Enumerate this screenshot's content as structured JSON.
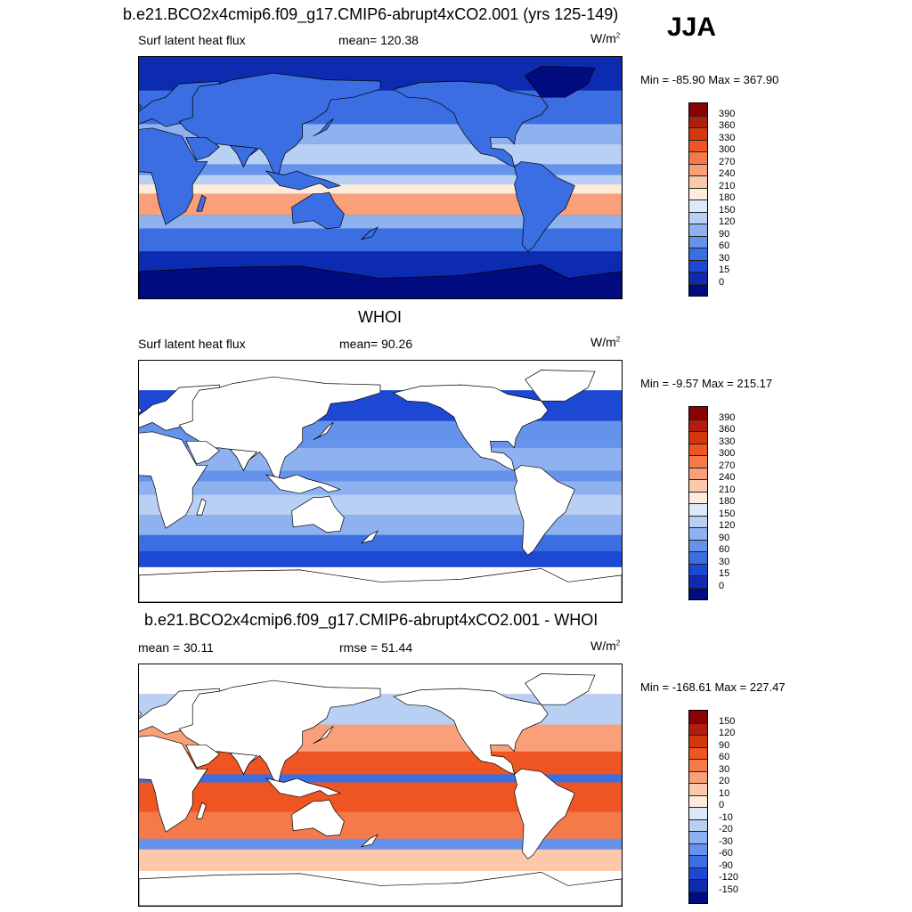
{
  "header": {
    "title": "b.e21.BCO2x4cmip6.f09_g17.CMIP6-abrupt4xCO2.001 (yrs 125-149)",
    "season": "JJA"
  },
  "panels": [
    {
      "title": "",
      "left_label": "Surf latent heat flux",
      "mid_label": "mean= 120.38",
      "unit": "W/m",
      "unit_sup": "2",
      "minmax": "Min = -85.90 Max = 367.90",
      "land_masked": false,
      "colorbar": {
        "labels": [
          "390",
          "360",
          "330",
          "300",
          "270",
          "240",
          "210",
          "180",
          "150",
          "120",
          "90",
          "60",
          "30",
          "15",
          "0"
        ],
        "colors": [
          "#8b0000",
          "#b21e0d",
          "#d4380f",
          "#ee5522",
          "#f57a4a",
          "#f9a07a",
          "#fcc8aa",
          "#fdebdc",
          "#dde9f8",
          "#b9d0f5",
          "#8eb2f0",
          "#6592ea",
          "#3b6ee2",
          "#1d48d3",
          "#0d2bb0",
          "#000c80"
        ]
      }
    },
    {
      "title": "WHOI",
      "left_label": "Surf latent heat flux",
      "mid_label": "mean=  90.26",
      "unit": "W/m",
      "unit_sup": "2",
      "minmax": "Min =  -9.57 Max = 215.17",
      "land_masked": true,
      "colorbar": {
        "labels": [
          "390",
          "360",
          "330",
          "300",
          "270",
          "240",
          "210",
          "180",
          "150",
          "120",
          "90",
          "60",
          "30",
          "15",
          "0"
        ],
        "colors": [
          "#8b0000",
          "#b21e0d",
          "#d4380f",
          "#ee5522",
          "#f57a4a",
          "#f9a07a",
          "#fcc8aa",
          "#fdebdc",
          "#dde9f8",
          "#b9d0f5",
          "#8eb2f0",
          "#6592ea",
          "#3b6ee2",
          "#1d48d3",
          "#0d2bb0",
          "#000c80"
        ]
      }
    },
    {
      "title": "b.e21.BCO2x4cmip6.f09_g17.CMIP6-abrupt4xCO2.001 - WHOI",
      "left_label": "mean =  30.11",
      "mid_label": "rmse =  51.44",
      "unit": "W/m",
      "unit_sup": "2",
      "minmax": "Min = -168.61 Max = 227.47",
      "land_masked": true,
      "colorbar": {
        "labels": [
          "150",
          "120",
          "90",
          "60",
          "30",
          "20",
          "10",
          "0",
          "-10",
          "-20",
          "-30",
          "-60",
          "-90",
          "-120",
          "-150"
        ],
        "colors": [
          "#8b0000",
          "#b21e0d",
          "#d4380f",
          "#ee5522",
          "#f57a4a",
          "#f9a07a",
          "#fcc8aa",
          "#fdebdc",
          "#dde9f8",
          "#b9d0f5",
          "#8eb2f0",
          "#6592ea",
          "#3b6ee2",
          "#1d48d3",
          "#0d2bb0",
          "#000c80"
        ]
      }
    }
  ],
  "chart_data": [
    {
      "type": "heatmap",
      "title": "",
      "variable": "Surf latent heat flux",
      "units": "W/m2",
      "mean": 120.38,
      "min": -85.9,
      "max": 367.9,
      "levels": [
        0,
        15,
        30,
        60,
        90,
        120,
        150,
        180,
        210,
        240,
        270,
        300,
        330,
        360,
        390
      ]
    },
    {
      "type": "heatmap",
      "title": "WHOI",
      "variable": "Surf latent heat flux",
      "units": "W/m2",
      "mean": 90.26,
      "min": -9.57,
      "max": 215.17,
      "levels": [
        0,
        15,
        30,
        60,
        90,
        120,
        150,
        180,
        210,
        240,
        270,
        300,
        330,
        360,
        390
      ]
    },
    {
      "type": "heatmap",
      "title": "b.e21.BCO2x4cmip6.f09_g17.CMIP6-abrupt4xCO2.001 - WHOI",
      "units": "W/m2",
      "mean": 30.11,
      "rmse": 51.44,
      "min": -168.61,
      "max": 227.47,
      "levels": [
        -150,
        -120,
        -90,
        -60,
        -30,
        -20,
        -10,
        0,
        10,
        20,
        30,
        60,
        90,
        120,
        150
      ]
    }
  ]
}
